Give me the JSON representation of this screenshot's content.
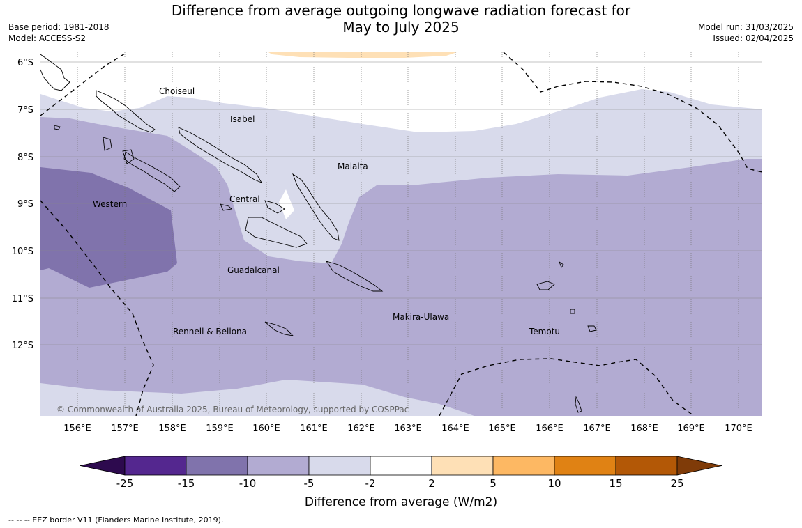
{
  "header": {
    "title_line1": "Difference from average outgoing longwave radiation forecast for",
    "title_line2": "May to July 2025",
    "base_period": "Base period: 1981-2018",
    "model": "Model: ACCESS-S2",
    "model_run": "Model run: 31/03/2025",
    "issued": "Issued: 02/04/2025"
  },
  "map": {
    "lat_labels": [
      "6°S",
      "7°S",
      "8°S",
      "9°S",
      "10°S",
      "11°S",
      "12°S"
    ],
    "lon_labels": [
      "156°E",
      "157°E",
      "158°E",
      "159°E",
      "160°E",
      "161°E",
      "162°E",
      "163°E",
      "164°E",
      "165°E",
      "166°E",
      "167°E",
      "168°E",
      "169°E",
      "170°E"
    ],
    "province_labels": [
      "Choiseul",
      "Isabel",
      "Malaita",
      "Central",
      "Western",
      "Guadalcanal",
      "Makira-Ulawa",
      "Rennell & Bellona",
      "Temotu"
    ],
    "copyright": "© Commonwealth of Australia 2025, Bureau of Meteorology, supported by COSPPac"
  },
  "colorbar": {
    "ticks": [
      "-25",
      "-15",
      "-10",
      "-5",
      "-2",
      "2",
      "5",
      "10",
      "15",
      "25"
    ],
    "colors": [
      "#2d0a4e",
      "#54278f",
      "#8073ac",
      "#b2abd2",
      "#d8daeb",
      "#ffffff",
      "#fee0b6",
      "#fdb863",
      "#e08214",
      "#b35806",
      "#7f3b08"
    ],
    "label": "Difference from average (W/m2)"
  },
  "legend": {
    "eez_note": "--  --  -- EEZ border V11 (Flanders Marine Institute, 2019)."
  }
}
